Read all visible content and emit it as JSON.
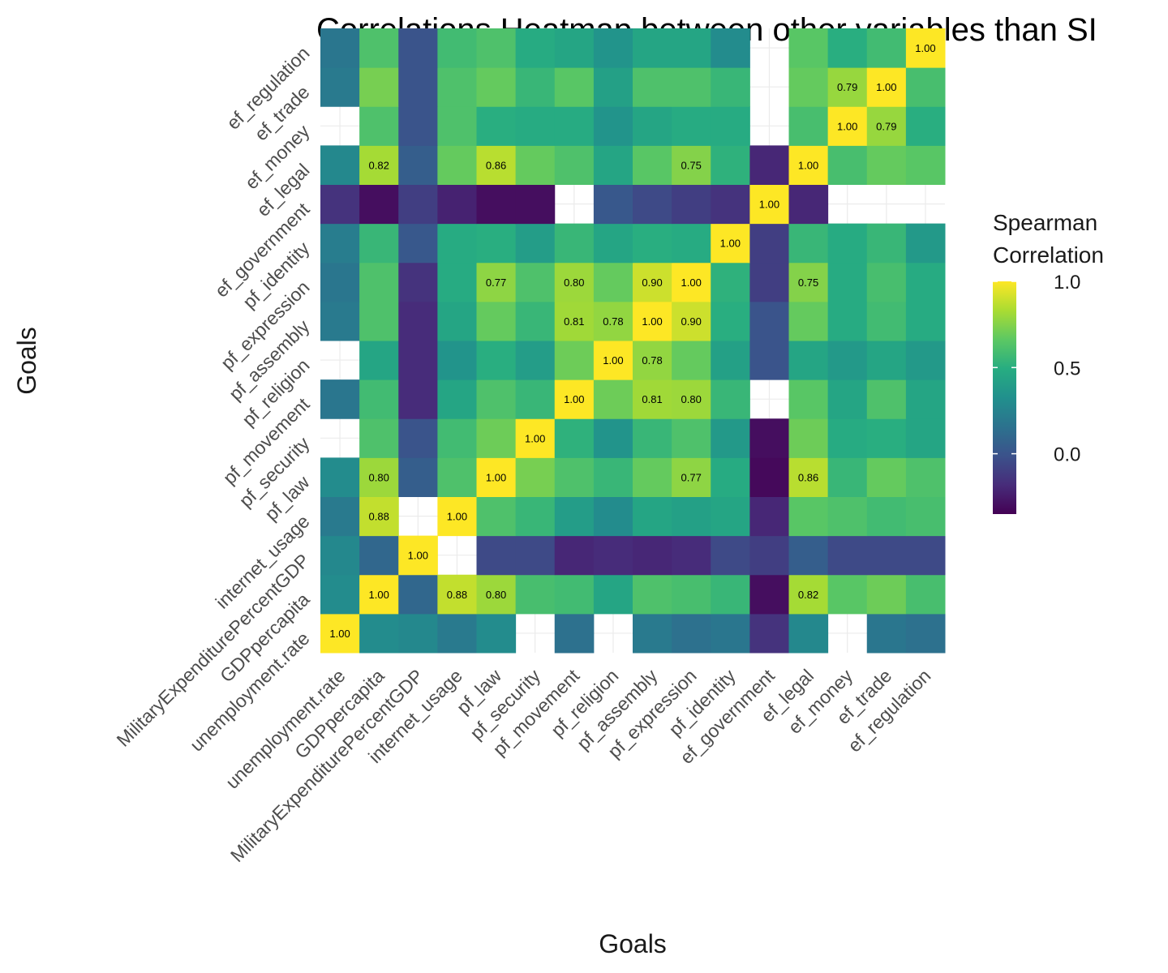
{
  "chart_data": {
    "type": "heatmap",
    "title": "Correlations Heatmap between other variables than SI",
    "xlabel": "Goals",
    "ylabel": "Goals",
    "variables": [
      "unemployment.rate",
      "GDPpercapita",
      "MilitaryExpenditurePercentGDP",
      "internet_usage",
      "pf_law",
      "pf_security",
      "pf_movement",
      "pf_religion",
      "pf_assembly",
      "pf_expression",
      "pf_identity",
      "ef_government",
      "ef_legal",
      "ef_money",
      "ef_trade",
      "ef_regulation"
    ],
    "matrix": [
      [
        1.0,
        0.3,
        0.28,
        0.2,
        0.3,
        null,
        0.15,
        null,
        0.2,
        0.15,
        0.18,
        -0.15,
        0.28,
        null,
        0.18,
        0.15
      ],
      [
        0.3,
        1.0,
        0.1,
        0.88,
        0.8,
        0.6,
        0.58,
        0.45,
        0.62,
        0.6,
        0.55,
        -0.3,
        0.82,
        0.65,
        0.7,
        0.6
      ],
      [
        0.28,
        0.1,
        1.0,
        null,
        -0.05,
        -0.05,
        -0.2,
        -0.18,
        -0.2,
        -0.18,
        -0.05,
        -0.1,
        0.05,
        -0.05,
        -0.05,
        -0.05
      ],
      [
        0.2,
        0.88,
        null,
        1.0,
        0.62,
        0.55,
        0.4,
        0.3,
        0.45,
        0.42,
        0.45,
        -0.2,
        0.65,
        0.62,
        0.58,
        0.6
      ],
      [
        0.3,
        0.8,
        0.05,
        0.62,
        1.0,
        0.72,
        0.62,
        0.55,
        0.68,
        0.77,
        0.48,
        -0.32,
        0.86,
        0.55,
        0.68,
        0.62
      ],
      [
        null,
        0.62,
        0.0,
        0.58,
        0.7,
        1.0,
        0.52,
        0.35,
        0.55,
        0.62,
        0.38,
        -0.3,
        0.7,
        0.48,
        0.5,
        0.45
      ],
      [
        0.18,
        0.58,
        -0.18,
        0.45,
        0.62,
        0.55,
        1.0,
        0.7,
        0.81,
        0.8,
        0.55,
        null,
        0.65,
        0.45,
        0.62,
        0.45
      ],
      [
        null,
        0.45,
        -0.18,
        0.35,
        0.5,
        0.4,
        0.7,
        1.0,
        0.78,
        0.68,
        0.42,
        0.0,
        0.45,
        0.38,
        0.45,
        0.38
      ],
      [
        0.2,
        0.62,
        -0.18,
        0.45,
        0.68,
        0.55,
        0.81,
        0.78,
        1.0,
        0.9,
        0.5,
        0.0,
        0.68,
        0.48,
        0.58,
        0.48
      ],
      [
        0.18,
        0.62,
        -0.15,
        0.48,
        0.77,
        0.62,
        0.8,
        0.68,
        0.9,
        1.0,
        0.52,
        -0.1,
        0.75,
        0.48,
        0.6,
        0.48
      ],
      [
        0.22,
        0.55,
        0.02,
        0.48,
        0.5,
        0.4,
        0.55,
        0.45,
        0.5,
        0.48,
        1.0,
        -0.1,
        0.55,
        0.48,
        0.55,
        0.38
      ],
      [
        -0.15,
        -0.3,
        -0.1,
        -0.22,
        -0.3,
        -0.3,
        null,
        0.02,
        -0.05,
        -0.1,
        -0.15,
        1.0,
        -0.2,
        null,
        null,
        null
      ],
      [
        0.28,
        0.82,
        0.05,
        0.68,
        0.86,
        0.68,
        0.62,
        0.45,
        0.65,
        0.75,
        0.52,
        -0.2,
        1.0,
        0.6,
        0.68,
        0.65
      ],
      [
        null,
        0.62,
        0.0,
        0.62,
        0.5,
        0.48,
        0.48,
        0.35,
        0.45,
        0.48,
        0.48,
        null,
        0.6,
        1.0,
        0.79,
        0.5
      ],
      [
        0.2,
        0.72,
        0.0,
        0.62,
        0.68,
        0.55,
        0.65,
        0.42,
        0.62,
        0.62,
        0.55,
        null,
        0.68,
        0.79,
        1.0,
        0.6
      ],
      [
        0.18,
        0.62,
        0.0,
        0.58,
        0.62,
        0.48,
        0.45,
        0.35,
        0.45,
        0.45,
        0.3,
        null,
        0.65,
        0.5,
        0.58,
        1.0
      ]
    ],
    "labeled_threshold": 0.75,
    "colorscale": "viridis",
    "color_range": [
      -0.35,
      1.0
    ],
    "legend": {
      "title_line1": "Spearman",
      "title_line2": "Correlation",
      "ticks": [
        "1.0",
        "0.5",
        "0.0"
      ],
      "tick_values": [
        1.0,
        0.5,
        0.0
      ],
      "placement": "right"
    },
    "grid": false
  }
}
